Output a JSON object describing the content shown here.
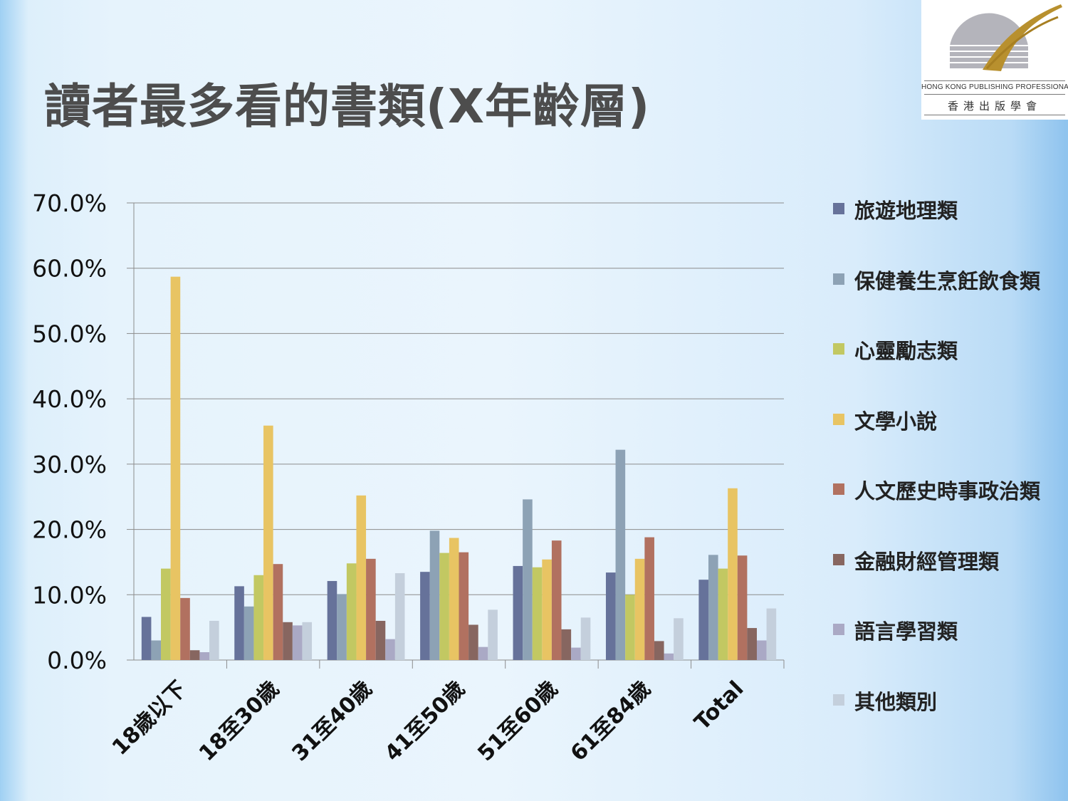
{
  "slide": {
    "title": "讀者最多看的書類(X年齡層)"
  },
  "logo": {
    "org_en": "HONG KONG PUBLISHING PROFESSIONALS SOCIETY",
    "org_zh": "香港出版學會"
  },
  "chart_data": {
    "type": "bar",
    "title": "",
    "xlabel": "",
    "ylabel": "",
    "ylim": [
      0,
      70
    ],
    "yticks": [
      "0.0%",
      "10.0%",
      "20.0%",
      "30.0%",
      "40.0%",
      "50.0%",
      "60.0%",
      "70.0%"
    ],
    "grid": true,
    "legend_position": "right",
    "categories": [
      "18歲以下",
      "18至30歲",
      "31至40歲",
      "41至50歲",
      "51至60歲",
      "61至84歲",
      "Total"
    ],
    "series": [
      {
        "name": "旅遊地理類",
        "color": "#66729a",
        "values": [
          6.6,
          11.3,
          12.1,
          13.5,
          14.4,
          13.4,
          12.3
        ]
      },
      {
        "name": "保健養生烹飪飲食類",
        "color": "#8da2b5",
        "values": [
          3.0,
          8.2,
          10.1,
          19.8,
          24.6,
          32.2,
          16.1
        ]
      },
      {
        "name": "心靈勵志類",
        "color": "#c2c862",
        "values": [
          14.0,
          13.0,
          14.8,
          16.4,
          14.2,
          10.0,
          14.0
        ]
      },
      {
        "name": "文學小說",
        "color": "#e8c463",
        "values": [
          58.7,
          35.9,
          25.2,
          18.7,
          15.4,
          15.5,
          26.3
        ]
      },
      {
        "name": "人文歷史時事政治類",
        "color": "#b17160",
        "values": [
          9.5,
          14.7,
          15.5,
          16.5,
          18.3,
          18.8,
          16.0
        ]
      },
      {
        "name": "金融財經管理類",
        "color": "#876660",
        "values": [
          1.5,
          5.8,
          6.0,
          5.4,
          4.7,
          2.9,
          4.9
        ]
      },
      {
        "name": "語言學習類",
        "color": "#aaa9c5",
        "values": [
          1.2,
          5.3,
          3.2,
          2.0,
          1.9,
          1.0,
          3.0
        ]
      },
      {
        "name": "其他類別",
        "color": "#c4cfdc",
        "values": [
          6.0,
          5.8,
          13.3,
          7.7,
          6.5,
          6.4,
          7.9
        ]
      }
    ]
  }
}
